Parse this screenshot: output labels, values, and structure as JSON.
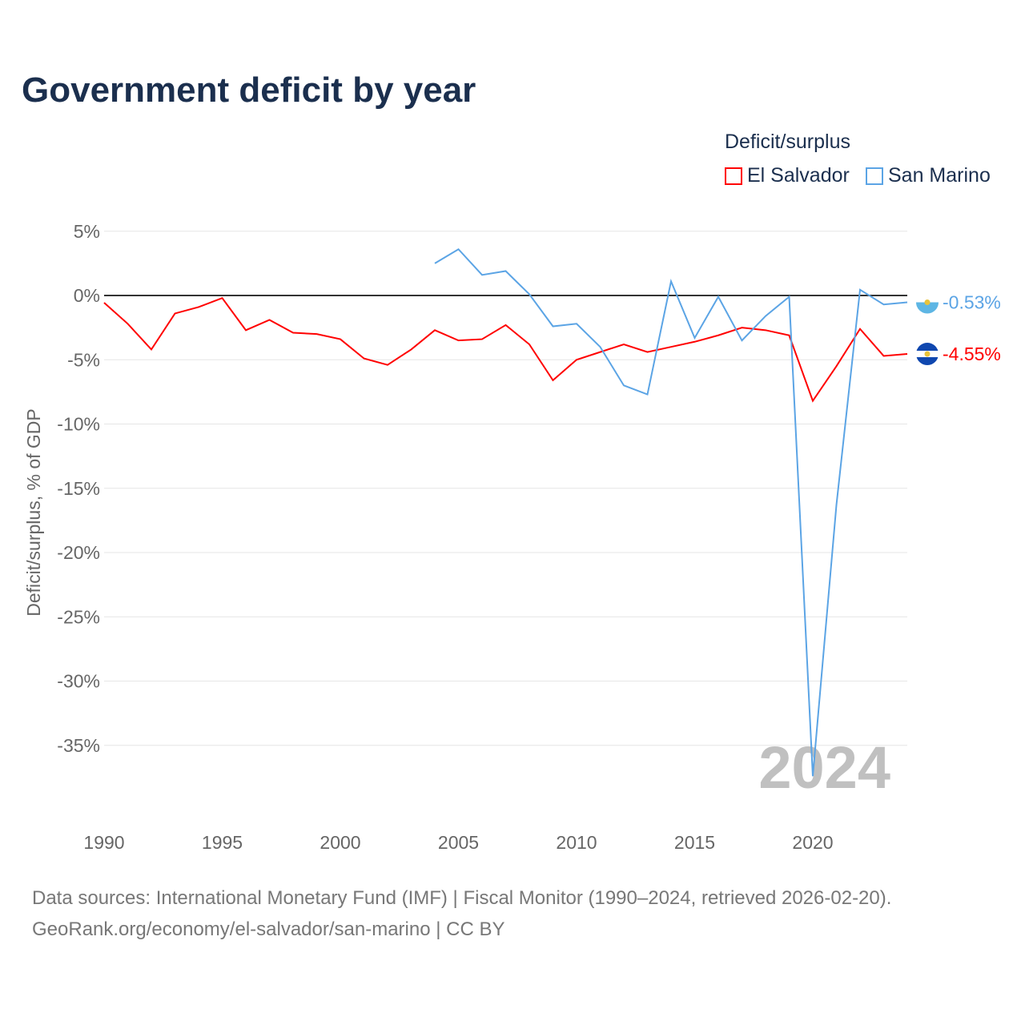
{
  "chart_data": {
    "type": "line",
    "title": "Government deficit by year",
    "ylabel": "Deficit/surplus, % of GDP",
    "xlabel": "",
    "legend_title": "Deficit/surplus",
    "legend_position": "top-right",
    "ylim": [
      -40,
      6
    ],
    "xlim": [
      1990,
      2024
    ],
    "yticks": [
      5,
      0,
      -5,
      -10,
      -15,
      -20,
      -25,
      -30,
      -35
    ],
    "ytick_labels": [
      "5%",
      "0%",
      "-5%",
      "-10%",
      "-15%",
      "-20%",
      "-25%",
      "-30%",
      "-35%"
    ],
    "xticks": [
      1990,
      1995,
      2000,
      2005,
      2010,
      2015,
      2020
    ],
    "xtick_labels": [
      "1990",
      "1995",
      "2000",
      "2005",
      "2010",
      "2015",
      "2020"
    ],
    "year_watermark": "2024",
    "series": [
      {
        "name": "El Salvador",
        "color": "#ff0000",
        "end_label": "-4.55%",
        "x": [
          1990,
          1991,
          1992,
          1993,
          1994,
          1995,
          1996,
          1997,
          1998,
          1999,
          2000,
          2001,
          2002,
          2003,
          2004,
          2005,
          2006,
          2007,
          2008,
          2009,
          2010,
          2011,
          2012,
          2013,
          2014,
          2015,
          2016,
          2017,
          2018,
          2019,
          2020,
          2021,
          2022,
          2023,
          2024
        ],
        "values": [
          -0.56,
          -2.2,
          -4.2,
          -1.4,
          -0.9,
          -0.2,
          -2.7,
          -1.9,
          -2.9,
          -3.0,
          -3.4,
          -4.9,
          -5.4,
          -4.2,
          -2.7,
          -3.5,
          -3.4,
          -2.3,
          -3.8,
          -6.6,
          -5.0,
          -4.4,
          -3.8,
          -4.4,
          -4.0,
          -3.6,
          -3.1,
          -2.5,
          -2.7,
          -3.1,
          -8.2,
          -5.5,
          -2.6,
          -4.7,
          -4.55
        ]
      },
      {
        "name": "San Marino",
        "color": "#5ba4e5",
        "end_label": "-0.53%",
        "x": [
          2004,
          2005,
          2006,
          2007,
          2008,
          2009,
          2010,
          2011,
          2012,
          2013,
          2014,
          2015,
          2016,
          2017,
          2018,
          2019,
          2020,
          2021,
          2022,
          2023,
          2024
        ],
        "values": [
          2.5,
          3.6,
          1.6,
          1.9,
          0.1,
          -2.4,
          -2.2,
          -4.0,
          -7.0,
          -7.7,
          1.1,
          -3.3,
          -0.1,
          -3.5,
          -1.6,
          -0.1,
          -37.4,
          -16.3,
          0.45,
          -0.7,
          -0.53
        ]
      }
    ]
  },
  "footer": {
    "line1": "Data sources: International Monetary Fund (IMF) | Fiscal Monitor (1990–2024, retrieved 2026-02-20).",
    "line2": "GeoRank.org/economy/el-salvador/san-marino | CC BY"
  }
}
